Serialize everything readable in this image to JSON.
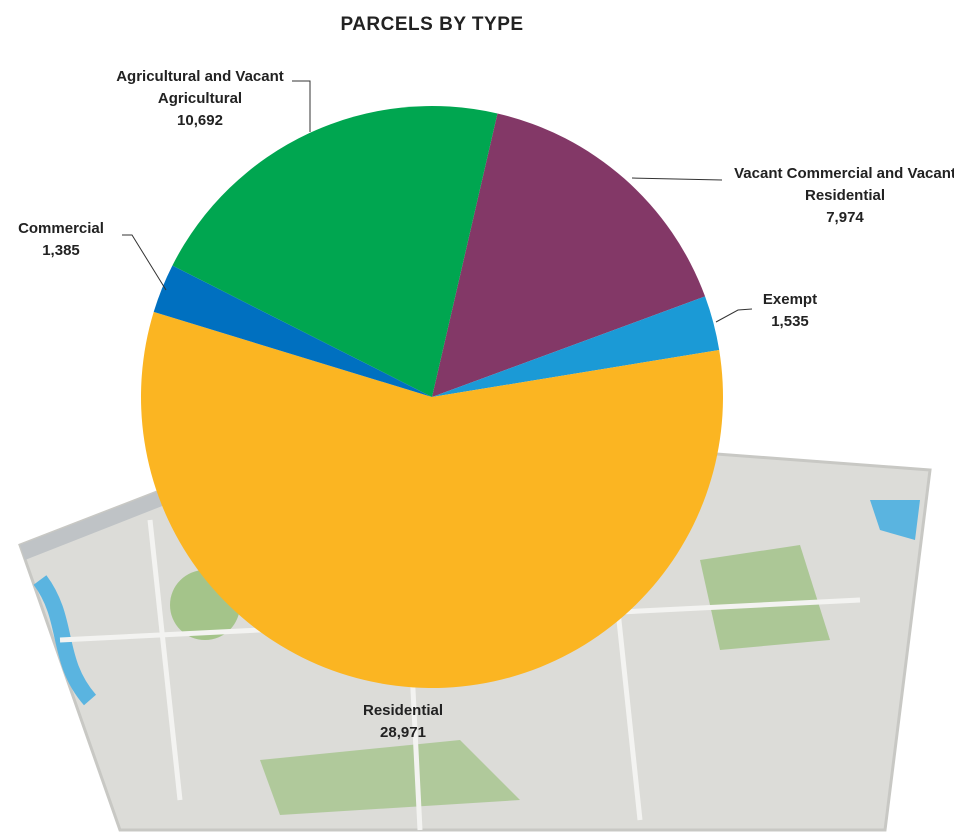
{
  "chart_data": {
    "type": "pie",
    "title": "PARCELS BY TYPE",
    "categories": [
      "Vacant Commercial and Vacant Residential",
      "Exempt",
      "Residential",
      "Commercial",
      "Agricultural and Vacant Agricultural"
    ],
    "values": [
      7974,
      1535,
      28971,
      1385,
      10692
    ],
    "value_labels": [
      "7,974",
      "1,535",
      "28,971",
      "1,385",
      "10,692"
    ],
    "colors": [
      "#833867",
      "#1b9ad6",
      "#fbb522",
      "#0070c0",
      "#00a650"
    ]
  }
}
